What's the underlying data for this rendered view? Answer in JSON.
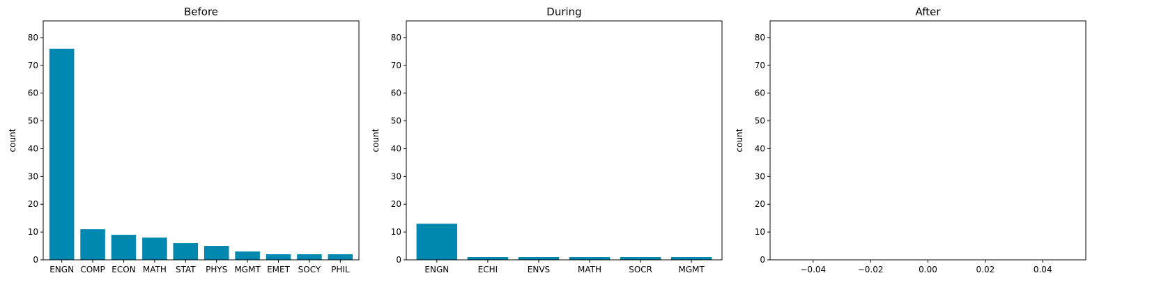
{
  "chart_data": [
    {
      "type": "bar",
      "title": "Before",
      "ylabel": "count",
      "xlabel": "",
      "categories": [
        "ENGN",
        "COMP",
        "ECON",
        "MATH",
        "STAT",
        "PHYS",
        "MGMT",
        "EMET",
        "SOCY",
        "PHIL"
      ],
      "values": [
        76,
        11,
        9,
        8,
        6,
        5,
        3,
        2,
        2,
        2
      ],
      "ylim": [
        0,
        86
      ],
      "yticks": [
        0,
        10,
        20,
        30,
        40,
        50,
        60,
        70,
        80
      ],
      "grid": false,
      "color": "#0088b0"
    },
    {
      "type": "bar",
      "title": "During",
      "ylabel": "count",
      "xlabel": "",
      "categories": [
        "ENGN",
        "ECHI",
        "ENVS",
        "MATH",
        "SOCR",
        "MGMT"
      ],
      "values": [
        13,
        1,
        1,
        1,
        1,
        1
      ],
      "ylim": [
        0,
        86
      ],
      "yticks": [
        0,
        10,
        20,
        30,
        40,
        50,
        60,
        70,
        80
      ],
      "grid": false,
      "color": "#0088b0"
    },
    {
      "type": "bar",
      "title": "After",
      "ylabel": "count",
      "xlabel": "",
      "categories": [],
      "values": [],
      "xlim": [
        -0.055,
        0.055
      ],
      "xticks": [
        -0.04,
        -0.02,
        0.0,
        0.02,
        0.04
      ],
      "xtick_labels": [
        "−0.04",
        "−0.02",
        "0.00",
        "0.02",
        "0.04"
      ],
      "ylim": [
        0,
        86
      ],
      "yticks": [
        0,
        10,
        20,
        30,
        40,
        50,
        60,
        70,
        80
      ],
      "grid": false,
      "color": "#0088b0"
    }
  ]
}
